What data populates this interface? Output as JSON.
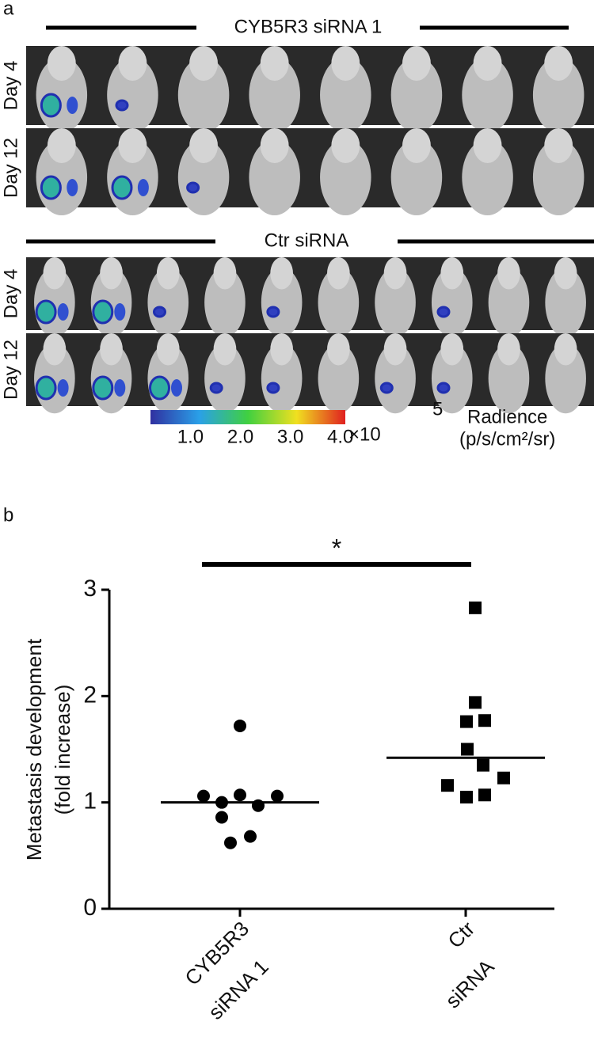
{
  "panel_a": {
    "panel_label": "a",
    "groups": [
      {
        "title": "CYB5R3 siRNA 1",
        "rows": [
          "Day 4",
          "Day 12"
        ]
      },
      {
        "title": "Ctr siRNA",
        "rows": [
          "Day 4",
          "Day 12"
        ]
      }
    ],
    "colorbar": {
      "lim": [
        0.2,
        4.1
      ],
      "ticks": [
        {
          "value": 1,
          "label": "1.0"
        },
        {
          "value": 2,
          "label": "2.0"
        },
        {
          "value": 3,
          "label": "3.0"
        },
        {
          "value": 4,
          "label": "4.0"
        }
      ],
      "multiplier": "×10",
      "exponent": "5",
      "label": "Radience",
      "unit": "(p/s/cm²/sr)"
    }
  },
  "chart_data": {
    "type": "scatter",
    "panel_label": "b",
    "categories": [
      [
        "CYB5R3",
        "siRNA 1"
      ],
      [
        "Ctr",
        "siRNA"
      ]
    ],
    "y_label": [
      "Metastasis development",
      "(fold increase)"
    ],
    "series": [
      {
        "marker": "circle",
        "color": "#000000",
        "values": [
          1.72,
          1.06,
          1.0,
          1.07,
          1.06,
          0.97,
          0.86,
          0.62,
          0.68
        ]
      },
      {
        "marker": "square",
        "color": "#000000",
        "values": [
          2.83,
          1.94,
          1.76,
          1.77,
          1.5,
          1.35,
          1.16,
          1.23,
          1.05,
          1.07
        ]
      }
    ],
    "center_values": [
      1.0,
      1.42
    ],
    "annotation": "*",
    "ylim": [
      0,
      3
    ],
    "yticks": [
      0,
      1,
      2,
      3
    ]
  }
}
